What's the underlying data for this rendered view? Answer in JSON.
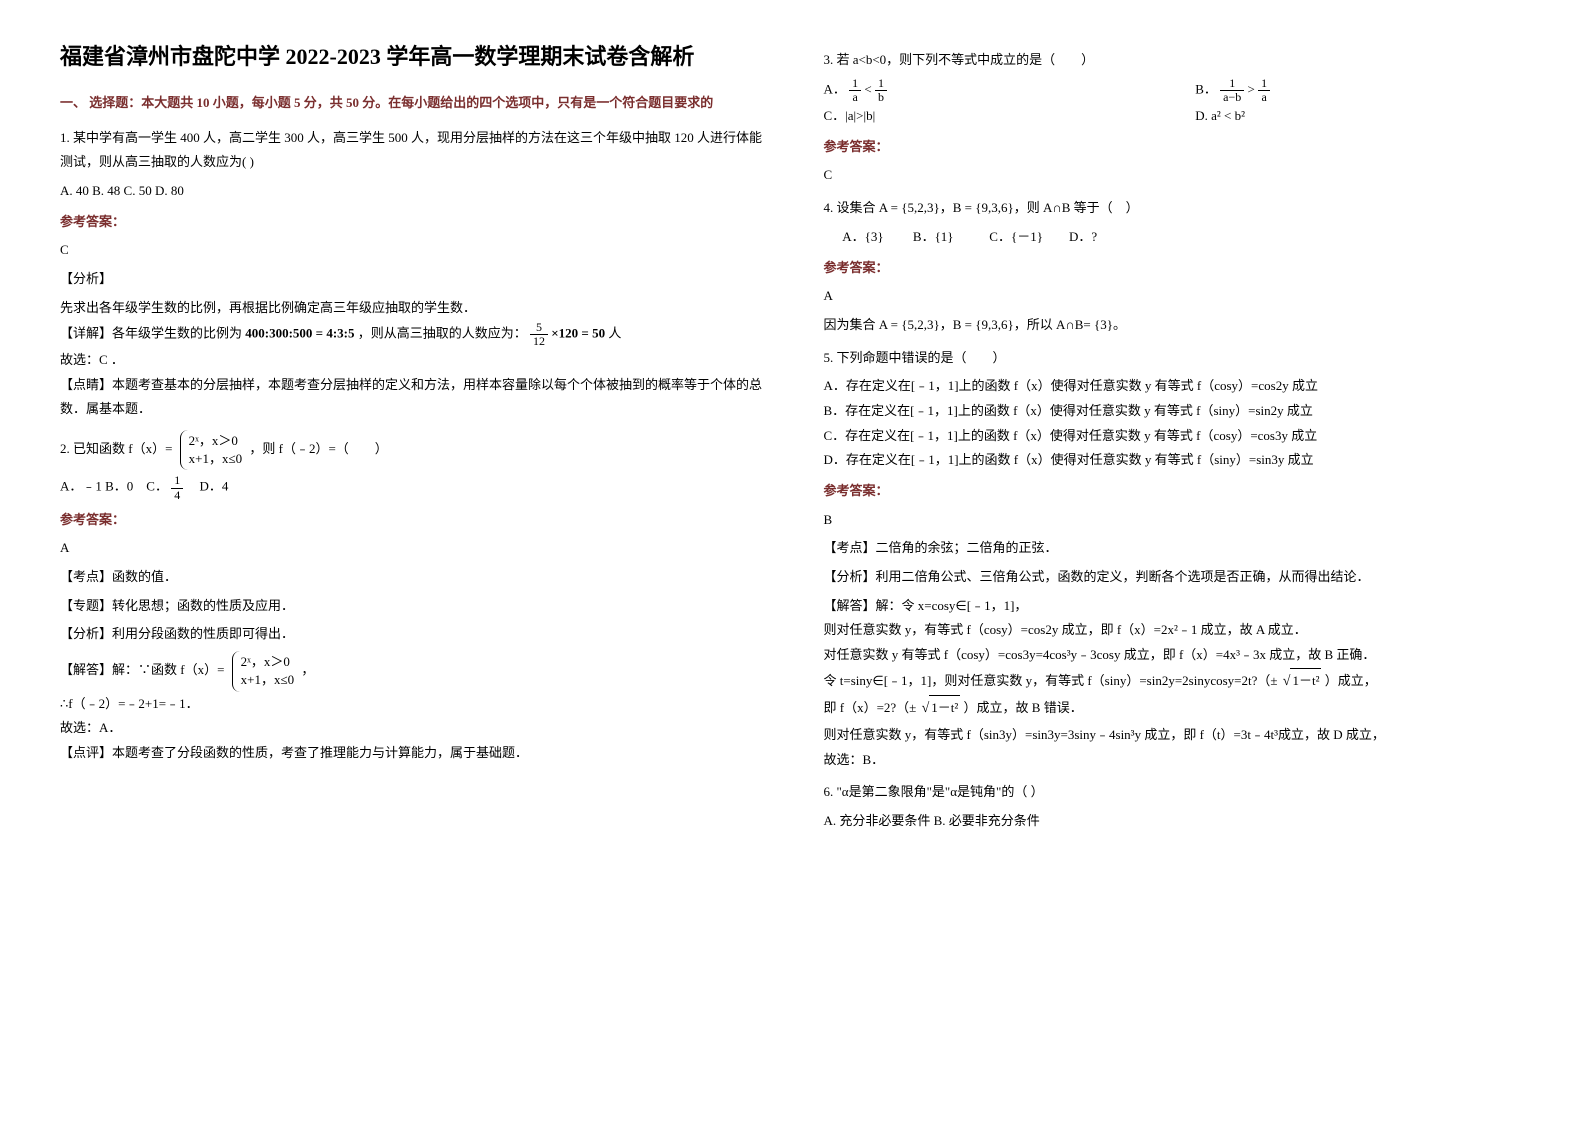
{
  "title": "福建省漳州市盘陀中学 2022-2023 学年高一数学理期末试卷含解析",
  "section1_head": "一、 选择题：本大题共 10 小题，每小题 5 分，共 50 分。在每小题给出的四个选项中，只有是一个符合题目要求的",
  "q1": {
    "text": "1. 某中学有高一学生 400 人，高二学生 300 人，高三学生 500 人，现用分层抽样的方法在这三个年级中抽取 120 人进行体能测试，则从高三抽取的人数应为(   )",
    "opts": "A. 40    B. 48    C. 50    D. 80",
    "ans_head": "参考答案：",
    "ans_letter": "C",
    "tag1": "【分析】",
    "a1": "先求出各年级学生数的比例，再根据比例确定高三年级应抽取的学生数．",
    "a2_pre": "【详解】各年级学生数的比例为",
    "a2_ratio": "400:300:500 = 4:3:5",
    "a2_post": "，则从高三抽取的人数应为：",
    "a2_calc_num": "5",
    "a2_calc_den": "12",
    "a2_calc_tail": "×120 = 50",
    "a2_unit": "人",
    "a3": "故选：C ．",
    "a4": "【点睛】本题考查基本的分层抽样，本题考查分层抽样的定义和方法，用样本容量除以每个个体被抽到的概率等于个体的总数．属基本题．"
  },
  "q2": {
    "pre": "2. 已知函数 f（x）=",
    "pw_l1": "2ˣ，x＞0",
    "pw_l2": "x+1，x≤0",
    "post": "，则 f（﹣2）=（　　）",
    "opts_pre": "A．﹣1 B．0　C．",
    "opt_c_num": "1",
    "opt_c_den": "4",
    "opts_post": "　D．4",
    "ans_head": "参考答案：",
    "ans_letter": "A",
    "tag1": "【考点】函数的值．",
    "tag2": "【专题】转化思想；函数的性质及应用．",
    "tag3": "【分析】利用分段函数的性质即可得出．",
    "sol_pre": "【解答】解：∵函数 f（x）=",
    "sol_pw_l1": "2ˣ，x＞0",
    "sol_pw_l2": "x+1，x≤0",
    "sol_post": "，",
    "sol2": "∴f（﹣2）=﹣2+1=﹣1．",
    "sol3": "故选：A．",
    "sol4": "【点评】本题考查了分段函数的性质，考查了推理能力与计算能力，属于基础题．"
  },
  "q3": {
    "text": "3. 若 a<b<0，则下列不等式中成立的是（　　）",
    "optA_pre": "A．",
    "optA_l_num": "1",
    "optA_l_den": "a",
    "optA_mid": " < ",
    "optA_r_num": "1",
    "optA_r_den": "b",
    "optB_pre": "B．",
    "optB_l_num": "1",
    "optB_l_den": "a−b",
    "optB_mid": " > ",
    "optB_r_num": "1",
    "optB_r_den": "a",
    "optC": "C．|a|>|b|",
    "optD": "D. a² < b²",
    "ans_head": "参考答案：",
    "ans_letter": "C"
  },
  "q4": {
    "text": "4. 设集合 A = {5,2,3}，B = {9,3,6}，则 A∩B 等于（　）",
    "opts": "      A．{3}         B．{1}           C．{－1}        D．?",
    "ans_head": "参考答案：",
    "ans_letter": "A",
    "sol": "因为集合 A = {5,2,3}，B = {9,3,6}，所以 A∩B= {3}。"
  },
  "q5": {
    "text": "5. 下列命题中错误的是（　　）",
    "a": "A．存在定义在[﹣1，1]上的函数 f（x）使得对任意实数 y 有等式 f（cosy）=cos2y 成立",
    "b": "B．存在定义在[﹣1，1]上的函数 f（x）使得对任意实数 y 有等式 f（siny）=sin2y 成立",
    "c": "C．存在定义在[﹣1，1]上的函数 f（x）使得对任意实数 y 有等式 f（cosy）=cos3y 成立",
    "d": "D．存在定义在[﹣1，1]上的函数 f（x）使得对任意实数 y 有等式 f（siny）=sin3y 成立",
    "ans_head": "参考答案：",
    "ans_letter": "B",
    "tag1": "【考点】二倍角的余弦；二倍角的正弦．",
    "tag2": "【分析】利用二倍角公式、三倍角公式，函数的定义，判断各个选项是否正确，从而得出结论．",
    "s1": "【解答】解：令 x=cosy∈[﹣1，1]，",
    "s2": "则对任意实数 y，有等式 f（cosy）=cos2y 成立，即 f（x）=2x²﹣1 成立，故 A 成立．",
    "s3": "对任意实数 y 有等式 f（cosy）=cos3y=4cos³y﹣3cosy 成立，即 f（x）=4x³﹣3x 成立，故 B 正确．",
    "s4_pre": "令 t=siny∈[﹣1，1]，则对任意实数 y，有等式 f（siny）=sin2y=2sinycosy=2t?（±",
    "s4_sqrt": "1－t²",
    "s4_post": "）成立，",
    "s5_pre": "即 f（x）=2?（±",
    "s5_sqrt": "1－t²",
    "s5_post": "）成立，故 B 错误．",
    "s6": "则对任意实数 y，有等式 f（sin3y）=sin3y=3siny﹣4sin³y 成立，即 f（t）=3t﹣4t³成立，故 D 成立，",
    "s7": "故选：B．"
  },
  "q6": {
    "text": "6. \"α是第二象限角\"是\"α是钝角\"的（         ）",
    "opts": "A. 充分非必要条件     B. 必要非充分条件"
  }
}
